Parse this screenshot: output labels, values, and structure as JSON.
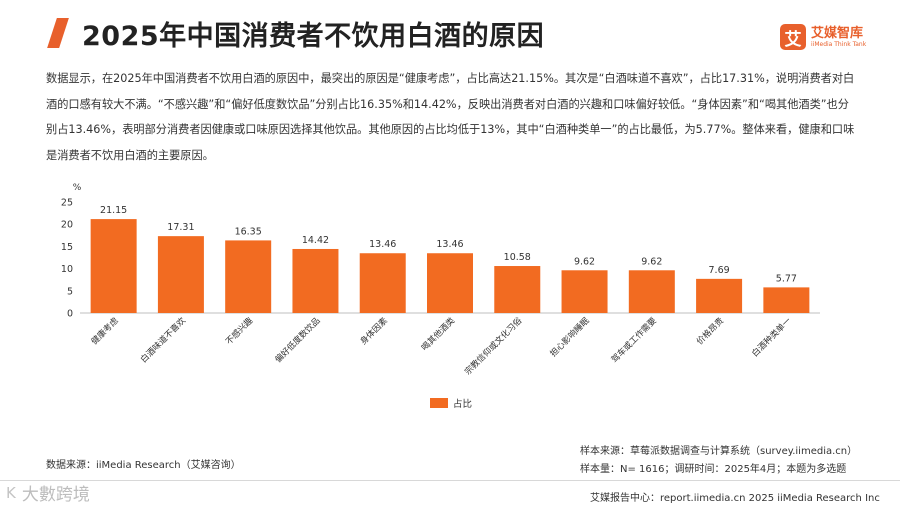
{
  "header": {
    "title": "2025年中国消费者不饮用白酒的原因",
    "logo_mark": "艾",
    "logo_cn": "艾媒智库",
    "logo_en": "iiMedia Think Tank"
  },
  "description": "数据显示，在2025年中国消费者不饮用白酒的原因中，最突出的原因是“健康考虑”，占比高达21.15%。其次是“白酒味道不喜欢”，占比17.31%，说明消费者对白酒的口感有较大不满。“不感兴趣”和“偏好低度数饮品”分别占比16.35%和14.42%，反映出消费者对白酒的兴趣和口味偏好较低。“身体因素”和“喝其他酒类”也分别占13.46%，表明部分消费者因健康或口味原因选择其他饮品。其他原因的占比均低于13%，其中“白酒种类单一”的占比最低，为5.77%。整体来看，健康和口味是消费者不饮用白酒的主要原因。",
  "chart_data": {
    "type": "bar",
    "title": "",
    "ylabel": "%",
    "xlabel": "",
    "ylim": [
      0,
      25
    ],
    "yticks": [
      0,
      5,
      10,
      15,
      20,
      25
    ],
    "grid": false,
    "legend": {
      "position": "bottom",
      "entries": [
        "占比"
      ]
    },
    "color": "#f26b21",
    "categories": [
      "健康考虑",
      "白酒味道不喜欢",
      "不感兴趣",
      "偏好低度数饮品",
      "身体因素",
      "喝其他酒类",
      "宗教信仰或文化习俗",
      "担心影响睡眠",
      "驾车或工作需要",
      "价格昂贵",
      "白酒种类单一"
    ],
    "series": [
      {
        "name": "占比",
        "values": [
          21.15,
          17.31,
          16.35,
          14.42,
          13.46,
          13.46,
          10.58,
          9.62,
          9.62,
          7.69,
          5.77
        ]
      }
    ],
    "value_labels": [
      "21.15",
      "17.31",
      "16.35",
      "14.42",
      "13.46",
      "13.46",
      "10.58",
      "9.62",
      "9.62",
      "7.69",
      "5.77"
    ]
  },
  "source": {
    "data_source": "数据来源：iiMedia Research（艾媒咨询）",
    "sample_source": "样本来源：草莓派数据调查与计算系统（survey.iimedia.cn）",
    "sample_info": "样本量：N= 1616；调研时间：2025年4月；本题为多选题"
  },
  "footer": {
    "text": "艾媒报告中心：report.iimedia.cn  2025 iiMedia Research Inc"
  },
  "watermark": {
    "icon": "K",
    "text": "大數跨境"
  }
}
